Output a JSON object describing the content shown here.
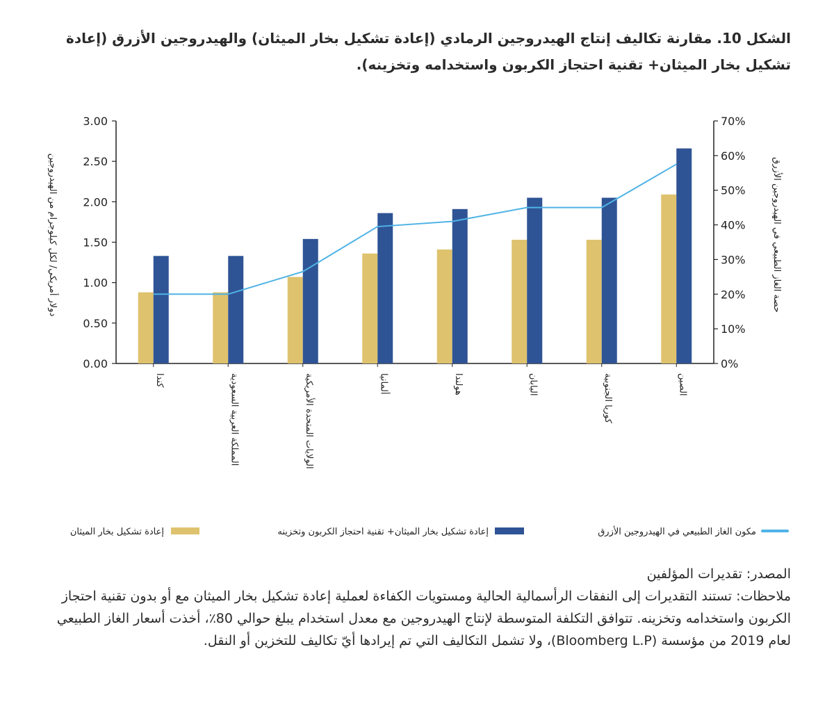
{
  "figure": {
    "number": "الشكل 10.",
    "caption": "مقارنة تكاليف إنتاج الهيدروجين الرمادي (إعادة تشكيل بخار الميثان) والهيدروجين الأزرق (إعادة تشكيل بخار الميثان+ تقنية احتجاز الكربون واستخدامه وتخزينه)."
  },
  "chart_data": {
    "type": "bar",
    "categories": [
      "كندا",
      "المملكة العربية السعودية",
      "الولايات المتحدة الأمريكية",
      "ألمانيا",
      "هولندا",
      "اليابان",
      "كوريا الجنوبية",
      "الصين"
    ],
    "series": [
      {
        "name": "إعادة تشكيل بخار الميثان",
        "kind": "bar",
        "axis": "left",
        "color": "#dfc26d",
        "values": [
          0.88,
          0.88,
          1.07,
          1.36,
          1.41,
          1.53,
          1.53,
          2.09
        ]
      },
      {
        "name": "إعادة تشكيل بخار الميثان+ تقنية احتجاز الكربون وتخزينه",
        "kind": "bar",
        "axis": "left",
        "color": "#2f5495",
        "values": [
          1.33,
          1.33,
          1.54,
          1.86,
          1.91,
          2.05,
          2.05,
          2.66
        ]
      },
      {
        "name": "مكون الغاز الطبيعي في الهيدروجين الأزرق",
        "kind": "line",
        "axis": "right",
        "color": "#4fb3e6",
        "values": [
          20,
          20,
          26.5,
          39.5,
          41,
          45,
          45,
          57.5
        ]
      }
    ],
    "ylabel": "دولار أمريكي/ لكل كيلوجرام من الهيدروجين",
    "y2label": "حصة الغاز الطبيعي في الهيدروجين الأزرق",
    "ylim": [
      0,
      3
    ],
    "y2lim": [
      0,
      70
    ],
    "yticks": [
      "0.00",
      "0.50",
      "1.00",
      "1.50",
      "2.00",
      "2.50",
      "3.00"
    ],
    "y2ticks": [
      "0%",
      "10%",
      "20%",
      "30%",
      "40%",
      "50%",
      "60%",
      "70%"
    ],
    "legend_position": "bottom",
    "legend_order": [
      2,
      1,
      0
    ]
  },
  "source": "المصدر: تقديرات المؤلفين",
  "notes": "ملاحظات: تستند التقديرات إلى النفقات الرأسمالية الحالية ومستويات الكفاءة لعملية إعادة تشكيل بخار الميثان مع أو بدون تقنية احتجاز الكربون واستخدامه وتخزينه. تتوافق التكلفة المتوسطة لإنتاج الهيدروجين مع معدل استخدام يبلغ حوالي 80٪، أخذت أسعار الغاز الطبيعي لعام 2019 من مؤسسة (Bloomberg L.P)، ولا تشمل التكاليف التي تم إيرادها أيّ تكاليف للتخزين أو النقل."
}
